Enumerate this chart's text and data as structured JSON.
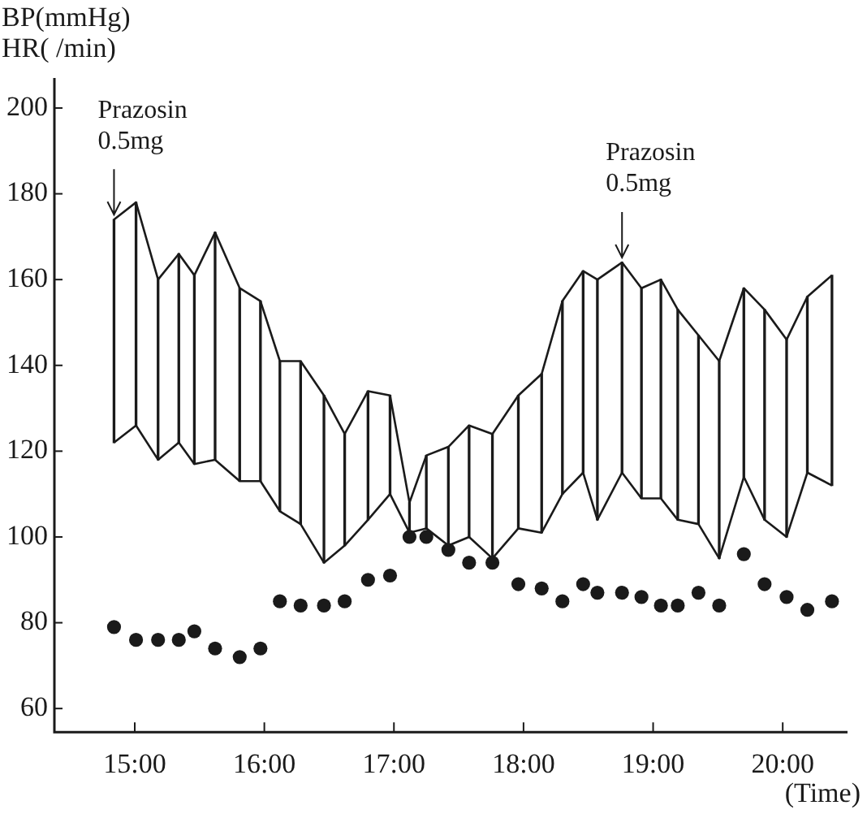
{
  "chart_data": {
    "type": "line",
    "ylabel": "BP(mmHg)\nHR( /min)",
    "xlabel": "(Time)",
    "x": [
      14.84,
      15.01,
      15.18,
      15.34,
      15.46,
      15.62,
      15.81,
      15.97,
      16.12,
      16.28,
      16.46,
      16.62,
      16.8,
      16.97,
      17.12,
      17.25,
      17.42,
      17.58,
      17.76,
      17.96,
      18.14,
      18.3,
      18.46,
      18.57,
      18.76,
      18.91,
      19.06,
      19.19,
      19.35,
      19.51,
      19.7,
      19.86,
      20.03,
      20.19,
      20.38
    ],
    "series": [
      {
        "type": "bar",
        "color": "#1a1a1a",
        "base": [
          122,
          126,
          118,
          122,
          117,
          118,
          113,
          113,
          106,
          103,
          94,
          98,
          104,
          110,
          101,
          102,
          98,
          100,
          95,
          102,
          101,
          110,
          115,
          104,
          115,
          109,
          109,
          104,
          103,
          95,
          114,
          104,
          100,
          115,
          112
        ],
        "values": [
          52,
          52,
          42,
          44,
          44,
          53,
          45,
          42,
          35,
          38,
          39,
          26,
          30,
          23,
          7,
          17,
          23,
          26,
          29,
          31,
          37,
          45,
          47,
          56,
          49,
          49,
          51,
          49,
          44,
          46,
          44,
          49,
          46,
          41,
          49
        ]
      },
      {
        "type": "line",
        "color": "#1a1a1a",
        "marker": "none",
        "values": [
          174,
          178,
          160,
          166,
          161,
          171,
          158,
          155,
          141,
          141,
          133,
          124,
          134,
          133,
          108,
          119,
          121,
          126,
          124,
          133,
          138,
          155,
          162,
          160,
          164,
          158,
          160,
          153,
          147,
          141,
          158,
          153,
          146,
          156,
          161
        ]
      },
      {
        "type": "line",
        "color": "#1a1a1a",
        "marker": "none",
        "values": [
          122,
          126,
          118,
          122,
          117,
          118,
          113,
          113,
          106,
          103,
          94,
          98,
          104,
          110,
          101,
          102,
          98,
          100,
          95,
          102,
          101,
          110,
          115,
          104,
          115,
          109,
          109,
          104,
          103,
          95,
          114,
          104,
          100,
          115,
          112
        ]
      },
      {
        "type": "scatter",
        "color": "#1a1a1a",
        "marker": "circle",
        "values": [
          79,
          76,
          76,
          76,
          78,
          74,
          72,
          74,
          85,
          84,
          84,
          85,
          90,
          91,
          100,
          100,
          97,
          94,
          94,
          89,
          88,
          85,
          89,
          87,
          87,
          86,
          84,
          84,
          87,
          84,
          96,
          89,
          86,
          83,
          85
        ]
      }
    ],
    "xlim": [
      14.38,
      20.5
    ],
    "xticks": [
      {
        "value": 15,
        "label": "15:00"
      },
      {
        "value": 16,
        "label": "16:00"
      },
      {
        "value": 17,
        "label": "17:00"
      },
      {
        "value": 18,
        "label": "18:00"
      },
      {
        "value": 19,
        "label": "19:00"
      },
      {
        "value": 20,
        "label": "20:00"
      }
    ],
    "ylim": [
      54.5,
      207
    ],
    "yticks": [
      60,
      80,
      100,
      120,
      140,
      160,
      180,
      200
    ],
    "grid": false,
    "legend": false,
    "annotations": [
      {
        "text": "Prazosin\n0.5mg",
        "x": 14.84,
        "y": 174
      },
      {
        "text": "Prazosin\n0.5mg",
        "x": 18.76,
        "y": 164
      }
    ]
  }
}
